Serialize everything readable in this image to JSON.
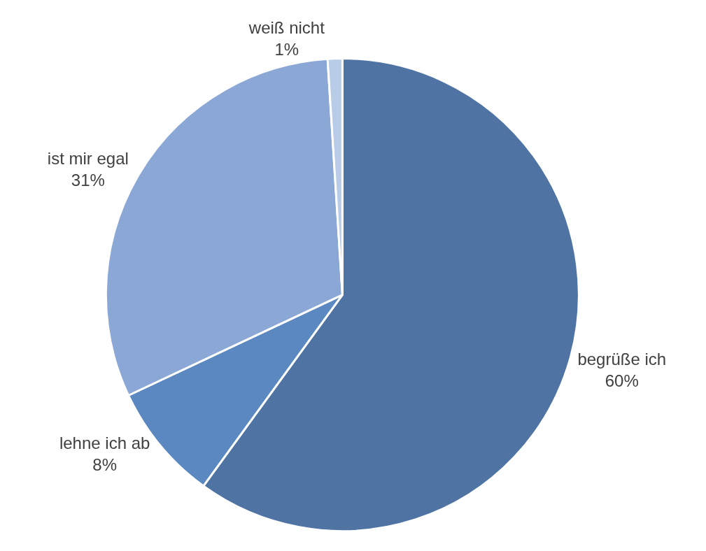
{
  "chart_data": {
    "type": "pie",
    "categories": [
      "begrüße ich",
      "lehne ich ab",
      "ist mir egal",
      "weiß nicht"
    ],
    "values": [
      60,
      8,
      31,
      1
    ],
    "value_labels": [
      "60%",
      "8%",
      "31%",
      "1%"
    ],
    "colors": [
      "#4f74a3",
      "#5b88c0",
      "#8aa7d6",
      "#b8cce8"
    ],
    "legend": false
  }
}
